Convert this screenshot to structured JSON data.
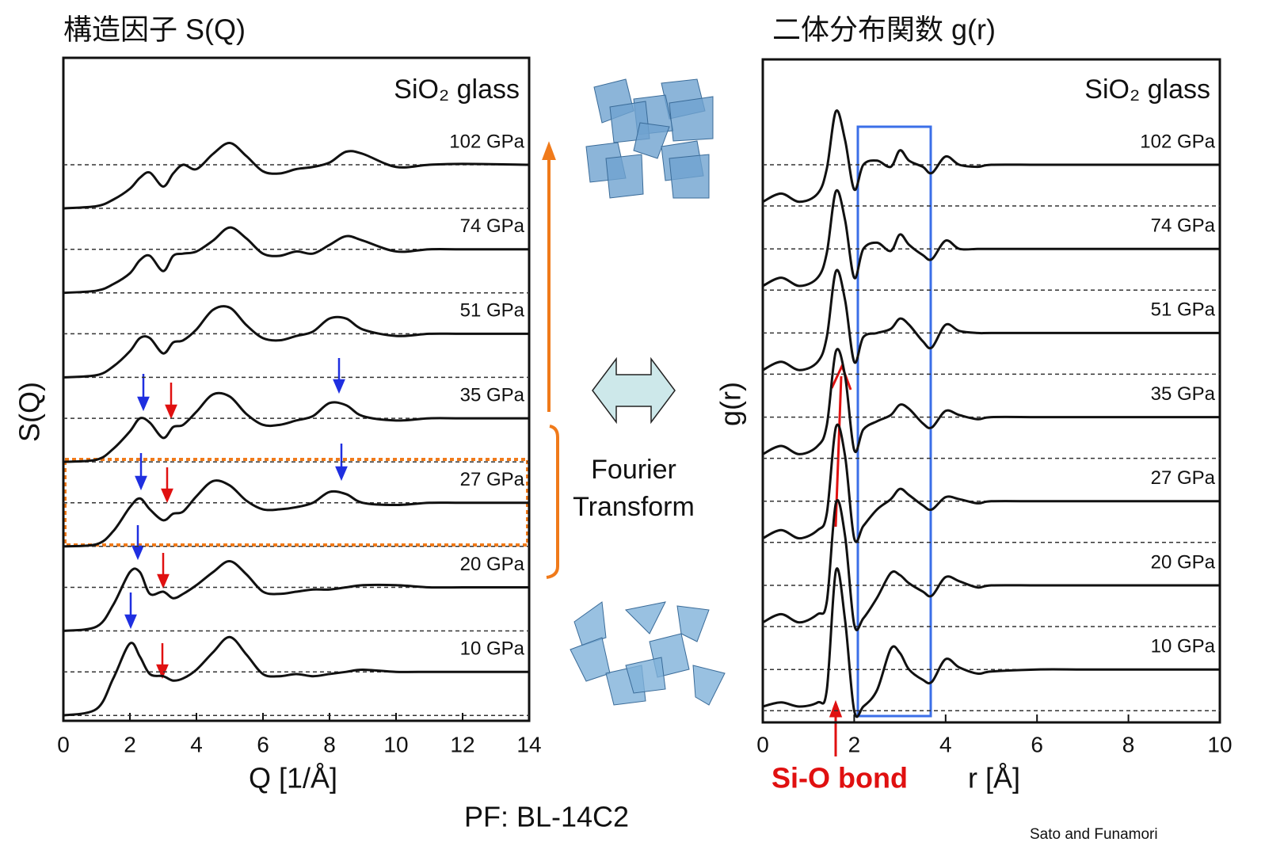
{
  "chart_data": [
    {
      "type": "line",
      "title": "構造因子 S(Q)",
      "xlabel": "Q [1/Å]",
      "ylabel": "S(Q)",
      "annotation": "SiO₂ glass",
      "xlim": [
        0,
        14
      ],
      "xticks": [
        0,
        2,
        4,
        6,
        8,
        10,
        12,
        14
      ],
      "x": [
        0,
        1,
        1.5,
        2,
        2.3,
        2.6,
        3,
        3.3,
        3.6,
        4,
        4.5,
        5,
        5.5,
        6,
        6.5,
        7,
        7.5,
        8,
        8.5,
        9,
        10,
        11,
        12,
        14
      ],
      "series": [
        {
          "name": "102 GPa",
          "color": "#111111",
          "values": [
            0,
            0.05,
            0.2,
            0.45,
            0.7,
            0.82,
            0.5,
            0.8,
            1.0,
            0.9,
            1.25,
            1.5,
            1.2,
            0.85,
            0.8,
            0.9,
            0.95,
            1.05,
            1.3,
            1.25,
            0.95,
            1.0,
            1.02,
            1.0
          ]
        },
        {
          "name": "74 GPa",
          "color": "#111111",
          "values": [
            0,
            0.05,
            0.2,
            0.45,
            0.75,
            0.85,
            0.5,
            0.85,
            0.9,
            0.95,
            1.2,
            1.5,
            1.25,
            0.9,
            0.85,
            0.95,
            0.9,
            1.1,
            1.3,
            1.2,
            0.95,
            1.0,
            1.0,
            1.0
          ]
        },
        {
          "name": "51 GPa",
          "color": "#111111",
          "values": [
            0,
            0.05,
            0.25,
            0.6,
            0.9,
            0.9,
            0.55,
            0.8,
            0.85,
            1.1,
            1.55,
            1.6,
            1.2,
            0.9,
            0.85,
            0.95,
            1.05,
            1.35,
            1.35,
            1.1,
            0.95,
            1.0,
            1.0,
            1.0
          ]
        },
        {
          "name": "35 GPa",
          "color": "#111111",
          "values": [
            0,
            0.05,
            0.3,
            0.7,
            1.0,
            0.9,
            0.55,
            0.8,
            0.85,
            1.15,
            1.55,
            1.5,
            1.1,
            0.85,
            0.85,
            0.95,
            1.05,
            1.35,
            1.3,
            1.05,
            0.95,
            1.0,
            1.0,
            1.0
          ]
        },
        {
          "name": "27 GPa",
          "color": "#111111",
          "values": [
            0,
            0.05,
            0.35,
            0.9,
            1.1,
            0.85,
            0.6,
            0.75,
            0.8,
            1.15,
            1.5,
            1.4,
            1.05,
            0.85,
            0.85,
            0.9,
            1.0,
            1.25,
            1.2,
            1.0,
            0.95,
            1.0,
            1.0,
            1.0
          ]
        },
        {
          "name": "20 GPa",
          "color": "#111111",
          "values": [
            0,
            0.1,
            0.6,
            1.35,
            1.35,
            0.85,
            0.9,
            0.75,
            0.85,
            1.05,
            1.35,
            1.6,
            1.3,
            0.9,
            0.85,
            0.9,
            0.95,
            0.95,
            1.0,
            1.05,
            1.05,
            1.0,
            1.0,
            1.0
          ]
        },
        {
          "name": "10 GPa",
          "color": "#111111",
          "values": [
            0,
            0.15,
            0.85,
            1.65,
            1.35,
            0.95,
            0.9,
            0.8,
            0.85,
            1.05,
            1.45,
            1.8,
            1.4,
            0.95,
            0.9,
            0.95,
            0.9,
            0.95,
            1.0,
            1.05,
            1.0,
            1.0,
            1.0,
            1.0
          ]
        }
      ]
    },
    {
      "type": "line",
      "title": "二体分布関数 g(r)",
      "xlabel": "r [Å]",
      "ylabel": "g(r)",
      "annotation": "SiO₂ glass",
      "marker_label": "Si-O bond",
      "xlim": [
        0,
        10
      ],
      "xticks": [
        0,
        2,
        4,
        6,
        8,
        10
      ],
      "x": [
        0,
        0.4,
        0.8,
        1.2,
        1.4,
        1.6,
        1.8,
        2.0,
        2.2,
        2.5,
        2.8,
        3.0,
        3.2,
        3.5,
        3.7,
        4.0,
        4.3,
        4.7,
        5,
        6,
        7,
        8,
        9,
        10
      ],
      "series": [
        {
          "name": "102 GPa",
          "color": "#111111",
          "values": [
            0.1,
            0.3,
            0.1,
            0.3,
            0.9,
            2.3,
            1.6,
            0.4,
            1.0,
            1.1,
            0.95,
            1.35,
            1.1,
            0.95,
            0.8,
            1.2,
            1.0,
            0.95,
            1.0,
            1.0,
            1.0,
            1.0,
            1.0,
            1.0
          ]
        },
        {
          "name": "74 GPa",
          "color": "#111111",
          "values": [
            0.1,
            0.3,
            0.1,
            0.3,
            0.9,
            2.4,
            1.7,
            0.3,
            1.0,
            1.15,
            0.95,
            1.35,
            1.1,
            0.85,
            0.75,
            1.2,
            1.0,
            1.0,
            1.0,
            1.0,
            1.0,
            1.0,
            1.0,
            1.0
          ]
        },
        {
          "name": "51 GPa",
          "color": "#111111",
          "values": [
            0.1,
            0.3,
            0.1,
            0.3,
            0.9,
            2.5,
            1.8,
            0.3,
            0.9,
            1.0,
            1.1,
            1.35,
            1.2,
            0.8,
            0.65,
            1.2,
            1.05,
            1.0,
            1.0,
            1.0,
            1.0,
            1.0,
            1.0,
            1.0
          ]
        },
        {
          "name": "35 GPa",
          "color": "#111111",
          "values": [
            0.1,
            0.3,
            0.1,
            0.3,
            0.8,
            2.6,
            2.0,
            0.2,
            0.7,
            0.9,
            1.05,
            1.3,
            1.2,
            0.85,
            0.75,
            1.15,
            1.05,
            0.95,
            1.0,
            1.0,
            1.0,
            1.0,
            1.0,
            1.0
          ]
        },
        {
          "name": "27 GPa",
          "color": "#111111",
          "values": [
            0.1,
            0.3,
            0.1,
            0.3,
            0.7,
            2.8,
            2.1,
            0.1,
            0.4,
            0.8,
            1.05,
            1.3,
            1.15,
            0.9,
            0.8,
            1.1,
            1.05,
            0.95,
            1.0,
            1.0,
            1.0,
            1.0,
            1.0,
            1.0
          ]
        },
        {
          "name": "20 GPa",
          "color": "#111111",
          "values": [
            0.1,
            0.3,
            0.1,
            0.3,
            0.6,
            3.0,
            2.2,
            0.05,
            0.2,
            0.7,
            1.3,
            1.25,
            1.05,
            0.85,
            0.75,
            1.2,
            1.1,
            0.95,
            1.0,
            1.0,
            1.0,
            1.0,
            1.0,
            1.0
          ]
        },
        {
          "name": "10 GPa",
          "color": "#111111",
          "values": [
            0.1,
            0.2,
            0.1,
            0.2,
            0.5,
            3.4,
            2.2,
            0.0,
            0.1,
            0.5,
            1.5,
            1.4,
            1.0,
            0.75,
            0.7,
            1.25,
            1.05,
            0.9,
            0.95,
            1.0,
            1.0,
            1.0,
            1.0,
            1.0
          ]
        }
      ]
    }
  ],
  "center_text": [
    "Fourier",
    "Transform"
  ],
  "source": "PF: BL-14C2",
  "credit": "Sato and Funamori"
}
